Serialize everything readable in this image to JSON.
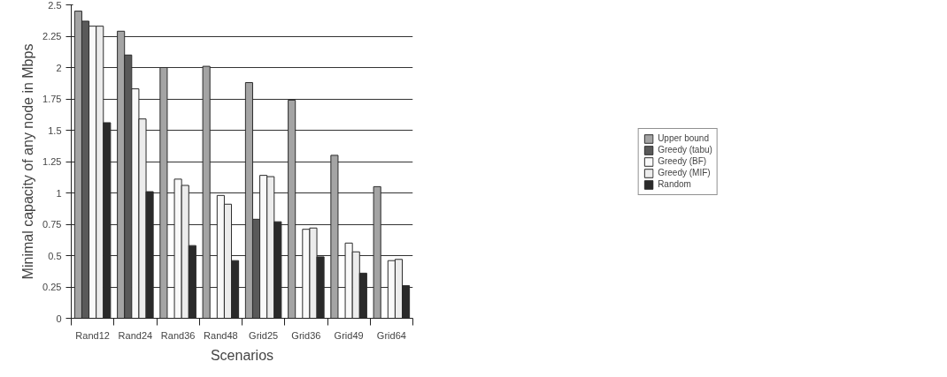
{
  "chart_data": {
    "type": "bar",
    "xlabel": "Scenarios",
    "ylabel": "Minimal capacity of any node in Mbps",
    "categories": [
      "Rand12",
      "Rand24",
      "Rand36",
      "Rand48",
      "Grid25",
      "Grid36",
      "Grid49",
      "Grid64"
    ],
    "series": [
      {
        "name": "Upper bound",
        "color": "#a4a4a4",
        "values": [
          2.45,
          2.29,
          2.0,
          2.01,
          1.88,
          1.74,
          1.3,
          1.05
        ]
      },
      {
        "name": "Greedy (tabu)",
        "color": "#595959",
        "values": [
          2.37,
          2.1,
          null,
          null,
          0.79,
          null,
          null,
          null
        ]
      },
      {
        "name": "Greedy (BF)",
        "color": "#f9f9f9",
        "values": [
          2.33,
          1.83,
          1.11,
          0.98,
          1.14,
          0.71,
          0.6,
          0.46
        ]
      },
      {
        "name": "Greedy (MIF)",
        "color": "#ececec",
        "values": [
          2.33,
          1.59,
          1.06,
          0.91,
          1.13,
          0.72,
          0.53,
          0.47
        ]
      },
      {
        "name": "Random",
        "color": "#2a2a2a",
        "values": [
          1.56,
          1.01,
          0.58,
          0.46,
          0.77,
          0.49,
          0.36,
          0.26
        ]
      }
    ],
    "ylim": [
      0,
      2.5
    ],
    "yticks": [
      0,
      {
        "value": 0.25,
        "label": "0.25"
      },
      {
        "value": 0.5,
        "label": "0.5"
      },
      {
        "value": 0.75,
        "label": "0.75"
      },
      1,
      {
        "value": 1.25,
        "label": "1.25"
      },
      {
        "value": 1.5,
        "label": "1.5"
      },
      {
        "value": 1.75,
        "label": "1.75"
      },
      2,
      {
        "value": 2.25,
        "label": "2.25"
      },
      {
        "value": 2.5,
        "label": "2.5"
      }
    ],
    "grid": "y",
    "legend": "right"
  }
}
